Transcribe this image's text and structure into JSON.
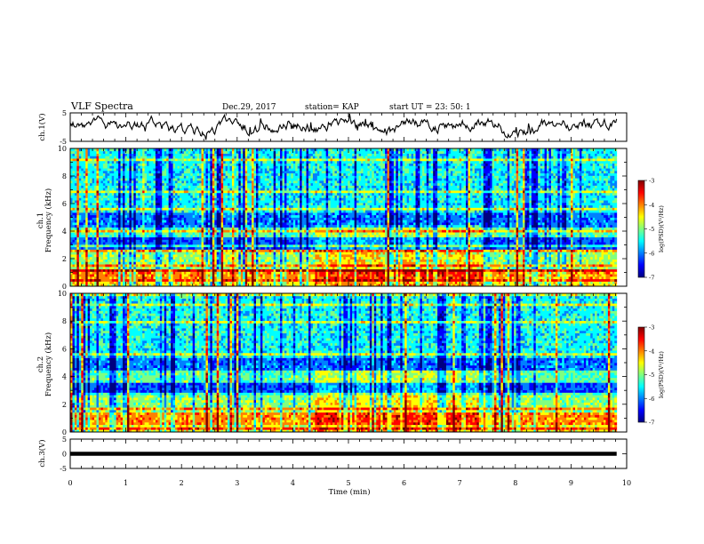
{
  "header": {
    "title": "VLF Spectra",
    "date": "Dec.29, 2017",
    "station": "station= KAP",
    "start_ut": "start  UT  =   23: 50: 1"
  },
  "colorscale": [
    "#000080",
    "#0000ff",
    "#0080ff",
    "#00ffff",
    "#80ff80",
    "#ffff00",
    "#ff8000",
    "#ff0000",
    "#800000"
  ],
  "chart_data": [
    {
      "type": "line",
      "id": "ch1-waveform",
      "ylabel": "ch.1(V)",
      "xlim": [
        0,
        10
      ],
      "ylim": [
        -5,
        5
      ],
      "yticks": [
        5,
        -5
      ],
      "x_extent": [
        0,
        9.82
      ],
      "series_level_approx": 0
    },
    {
      "type": "heatmap",
      "id": "ch1-spectrogram",
      "ylabel_top": "ch.1",
      "ylabel": "Frequency (kHz)",
      "xlim": [
        0,
        10
      ],
      "ylim": [
        0,
        10
      ],
      "yticks": [
        0,
        2,
        4,
        6,
        8,
        10
      ],
      "colorbar": {
        "label": "log(PSD)(V²/Hz)",
        "range": [
          -7,
          -3
        ],
        "ticks": [
          -3,
          -4,
          -5,
          -6,
          -7
        ]
      }
    },
    {
      "type": "heatmap",
      "id": "ch2-spectrogram",
      "ylabel_top": "ch.2",
      "ylabel": "Frequency (kHz)",
      "xlim": [
        0,
        10
      ],
      "ylim": [
        0,
        10
      ],
      "yticks": [
        0,
        2,
        4,
        6,
        8,
        10
      ],
      "colorbar": {
        "label": "log(PSD)(V²/Hz)",
        "range": [
          -7,
          -3
        ],
        "ticks": [
          -3,
          -4,
          -5,
          -6,
          -7
        ]
      }
    },
    {
      "type": "line",
      "id": "ch3-waveform",
      "ylabel": "ch.3(V)",
      "xlim": [
        0,
        10
      ],
      "ylim": [
        -5,
        5
      ],
      "yticks": [
        5,
        0,
        -5
      ],
      "x_extent": [
        0,
        9.82
      ],
      "series_level_approx": 0
    }
  ],
  "xaxis": {
    "label": "Time  (min)",
    "ticks": [
      0,
      1,
      2,
      3,
      4,
      5,
      6,
      7,
      8,
      9,
      10
    ]
  }
}
